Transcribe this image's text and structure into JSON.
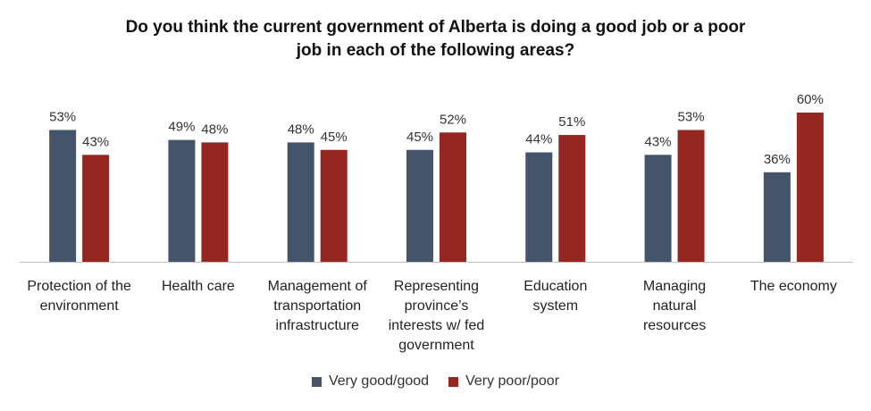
{
  "chart_data": {
    "type": "bar",
    "title_lines": [
      "Do you think the current government of Alberta is doing a good job or a poor",
      "job in each of the following areas?"
    ],
    "categories": [
      [
        "Protection of the",
        "environment"
      ],
      [
        "Health care"
      ],
      [
        "Management of",
        "transportation",
        "infrastructure"
      ],
      [
        "Representing",
        "province’s",
        "interests w/ fed",
        "government"
      ],
      [
        "Education",
        "system"
      ],
      [
        "Managing",
        "natural",
        "resources"
      ],
      [
        "The economy"
      ]
    ],
    "series": [
      {
        "name": "Very good/good",
        "color": "#44546A",
        "values": [
          53,
          49,
          48,
          45,
          44,
          43,
          36
        ],
        "labels": [
          "53%",
          "49%",
          "48%",
          "45%",
          "44%",
          "43%",
          "36%"
        ]
      },
      {
        "name": "Very poor/poor",
        "color": "#962621",
        "values": [
          43,
          48,
          45,
          52,
          51,
          53,
          60
        ],
        "labels": [
          "43%",
          "48%",
          "45%",
          "52%",
          "51%",
          "53%",
          "60%"
        ]
      }
    ],
    "ylim": [
      0,
      60
    ],
    "legend_position": "bottom"
  }
}
